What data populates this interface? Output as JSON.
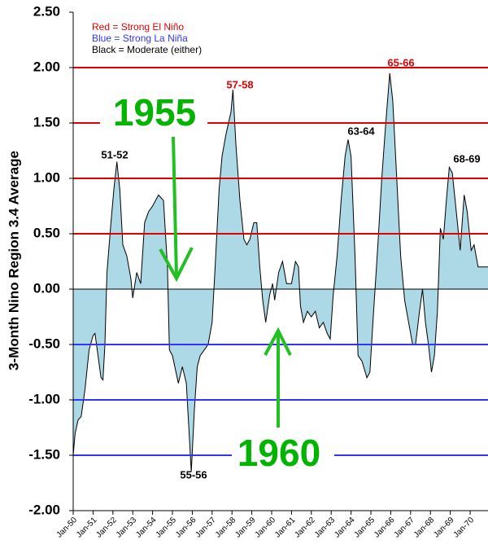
{
  "chart_data": {
    "type": "area",
    "y_label": "3-Month Nino Region 3.4 Average",
    "legend": [
      "Red = Strong  El Niño",
      "Blue = Strong  La Niña",
      "Black = Moderate  (either)"
    ],
    "legend_colors": [
      "#e00000",
      "#3333ff",
      "#000000"
    ],
    "annotations": [
      "51-52",
      "57-58",
      "63-64",
      "65-66",
      "68-69",
      "55-56",
      "1955",
      "1960"
    ],
    "color": "#add8e6",
    "line_color": "#000000",
    "positive_line_color": "#e00000",
    "negative_line_color": "#3333ff",
    "xlim": [
      1950,
      1970.9
    ],
    "ylim": [
      -2,
      2.5
    ],
    "xticks": [
      {
        "value": 1950,
        "label": "Jan-50"
      },
      {
        "value": 1951,
        "label": "Jan-51"
      },
      {
        "value": 1952,
        "label": "Jan-52"
      },
      {
        "value": 1953,
        "label": "Jan-53"
      },
      {
        "value": 1954,
        "label": "Jan-54"
      },
      {
        "value": 1955,
        "label": "Jan-55"
      },
      {
        "value": 1956,
        "label": "Jan-56"
      },
      {
        "value": 1957,
        "label": "Jan-57"
      },
      {
        "value": 1958,
        "label": "Jan-58"
      },
      {
        "value": 1959,
        "label": "Jan-59"
      },
      {
        "value": 1960,
        "label": "Jan-60"
      },
      {
        "value": 1961,
        "label": "Jan-61"
      },
      {
        "value": 1962,
        "label": "Jan-62"
      },
      {
        "value": 1963,
        "label": "Jan-63"
      },
      {
        "value": 1964,
        "label": "Jan-64"
      },
      {
        "value": 1965,
        "label": "Jan-65"
      },
      {
        "value": 1966,
        "label": "Jan-66"
      },
      {
        "value": 1967,
        "label": "Jan-67"
      },
      {
        "value": 1968,
        "label": "Jan-68"
      },
      {
        "value": 1969,
        "label": "Jan-69"
      },
      {
        "value": 1970,
        "label": "Jan-70"
      }
    ],
    "yticks": [
      {
        "value": 2.5,
        "label": "2.50"
      },
      {
        "value": 2,
        "label": "2.00"
      },
      {
        "value": 1.5,
        "label": "1.50"
      },
      {
        "value": 1,
        "label": "1.00"
      },
      {
        "value": 0.5,
        "label": "0.50"
      },
      {
        "value": 0,
        "label": "0.00"
      },
      {
        "value": -0.5,
        "label": "-0.50"
      },
      {
        "value": -1,
        "label": "-1.00"
      },
      {
        "value": -1.5,
        "label": "-1.50"
      },
      {
        "value": -2,
        "label": "-2.00"
      }
    ],
    "x": [
      1950.0,
      1950.1,
      1950.25,
      1950.4,
      1950.6,
      1950.8,
      1951.0,
      1951.1,
      1951.25,
      1951.4,
      1951.5,
      1951.6,
      1951.7,
      1951.9,
      1952.05,
      1952.2,
      1952.35,
      1952.5,
      1952.7,
      1952.9,
      1953.0,
      1953.2,
      1953.4,
      1953.6,
      1953.8,
      1954.0,
      1954.3,
      1954.55,
      1954.75,
      1954.85,
      1955.0,
      1955.3,
      1955.5,
      1955.7,
      1955.95,
      1956.1,
      1956.25,
      1956.4,
      1956.6,
      1956.8,
      1957.0,
      1957.15,
      1957.35,
      1957.5,
      1957.7,
      1957.95,
      1958.05,
      1958.2,
      1958.4,
      1958.6,
      1958.75,
      1958.9,
      1959.1,
      1959.25,
      1959.4,
      1959.55,
      1959.7,
      1959.9,
      1960.05,
      1960.15,
      1960.35,
      1960.55,
      1960.75,
      1961.0,
      1961.2,
      1961.35,
      1961.45,
      1961.6,
      1961.8,
      1962.0,
      1962.2,
      1962.4,
      1962.6,
      1962.8,
      1962.95,
      1963.1,
      1963.3,
      1963.5,
      1963.7,
      1963.85,
      1964.0,
      1964.2,
      1964.35,
      1964.55,
      1964.8,
      1964.95,
      1965.1,
      1965.35,
      1965.55,
      1965.75,
      1965.95,
      1966.1,
      1966.3,
      1966.5,
      1966.7,
      1966.9,
      1967.1,
      1967.25,
      1967.45,
      1967.6,
      1967.75,
      1967.9,
      1968.05,
      1968.2,
      1968.35,
      1968.5,
      1968.65,
      1968.8,
      1968.95,
      1969.1,
      1969.3,
      1969.5,
      1969.7,
      1969.85,
      1970.05,
      1970.2,
      1970.4,
      1970.9
    ],
    "values": [
      -1.5,
      -1.3,
      -1.18,
      -1.15,
      -0.9,
      -0.55,
      -0.42,
      -0.4,
      -0.6,
      -0.8,
      -0.82,
      -0.5,
      0.15,
      0.6,
      0.9,
      1.15,
      0.9,
      0.4,
      0.3,
      0.1,
      -0.08,
      0.15,
      0.05,
      0.6,
      0.7,
      0.75,
      0.85,
      0.8,
      0.2,
      -0.55,
      -0.6,
      -0.85,
      -0.7,
      -0.85,
      -1.65,
      -1.1,
      -0.7,
      -0.6,
      -0.55,
      -0.5,
      -0.3,
      0.2,
      0.9,
      1.2,
      1.4,
      1.6,
      1.8,
      1.3,
      0.8,
      0.45,
      0.4,
      0.45,
      0.6,
      0.6,
      0.2,
      -0.1,
      -0.3,
      -0.05,
      0.05,
      -0.1,
      0.15,
      0.25,
      0.05,
      0.05,
      0.25,
      0.2,
      -0.15,
      -0.3,
      -0.2,
      -0.25,
      -0.2,
      -0.35,
      -0.3,
      -0.4,
      -0.45,
      -0.05,
      0.3,
      0.8,
      1.2,
      1.35,
      1.2,
      0.3,
      -0.6,
      -0.65,
      -0.8,
      -0.75,
      -0.3,
      0.4,
      1.0,
      1.5,
      1.95,
      1.7,
      1.0,
      0.3,
      -0.1,
      -0.3,
      -0.5,
      -0.5,
      -0.2,
      0.0,
      -0.3,
      -0.5,
      -0.75,
      -0.6,
      -0.2,
      0.55,
      0.45,
      0.8,
      1.1,
      1.05,
      0.7,
      0.35,
      0.85,
      0.7,
      0.35,
      0.4,
      0.2,
      0.2
    ]
  }
}
